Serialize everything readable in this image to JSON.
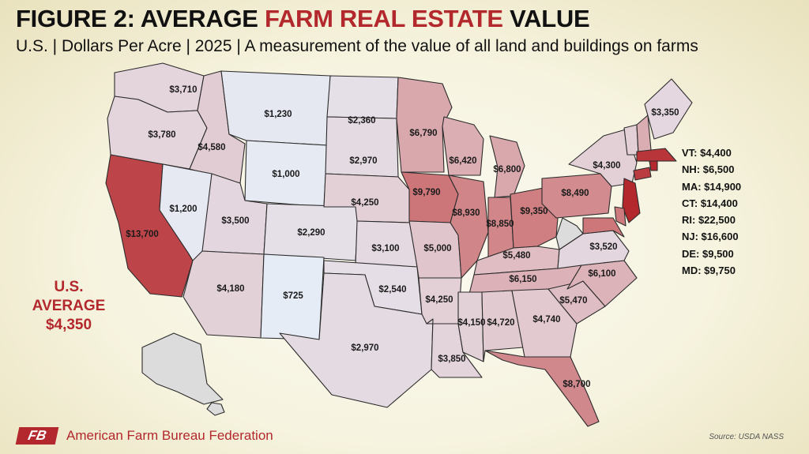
{
  "title": {
    "part1": "FIGURE 2: AVERAGE ",
    "part2": "FARM REAL ESTATE",
    "part3": " VALUE"
  },
  "subtitle": "U.S. | Dollars Per Acre | 2025 | A measurement of the value of all land and buildings on farms",
  "us_average": {
    "line1": "U.S.",
    "line2": "AVERAGE",
    "value": "$4,350"
  },
  "colors": {
    "low": "#e6ecf6",
    "mid": "#e3cfd6",
    "high": "#cc7376",
    "max": "#b3282d",
    "nodata": "#dcdcdc"
  },
  "states": [
    {
      "state": "WA",
      "label": "$3,710",
      "value": 3710
    },
    {
      "state": "OR",
      "label": "$3,780",
      "value": 3780
    },
    {
      "state": "CA",
      "label": "$13,700",
      "value": 13700
    },
    {
      "state": "ID",
      "label": "$4,580",
      "value": 4580
    },
    {
      "state": "NV",
      "label": "$1,200",
      "value": 1200
    },
    {
      "state": "MT",
      "label": "$1,230",
      "value": 1230
    },
    {
      "state": "WY",
      "label": "$1,000",
      "value": 1000
    },
    {
      "state": "UT",
      "label": "$3,500",
      "value": 3500
    },
    {
      "state": "CO",
      "label": "$2,290",
      "value": 2290
    },
    {
      "state": "AZ",
      "label": "$4,180",
      "value": 4180
    },
    {
      "state": "NM",
      "label": "$725",
      "value": 725
    },
    {
      "state": "ND",
      "label": "$2,360",
      "value": 2360
    },
    {
      "state": "SD",
      "label": "$2,970",
      "value": 2970
    },
    {
      "state": "NE",
      "label": "$4,250",
      "value": 4250
    },
    {
      "state": "KS",
      "label": "$3,100",
      "value": 3100
    },
    {
      "state": "OK",
      "label": "$2,540",
      "value": 2540
    },
    {
      "state": "TX",
      "label": "$2,970",
      "value": 2970
    },
    {
      "state": "MN",
      "label": "$6,790",
      "value": 6790
    },
    {
      "state": "IA",
      "label": "$9,790",
      "value": 9790
    },
    {
      "state": "MO",
      "label": "$5,000",
      "value": 5000
    },
    {
      "state": "AR",
      "label": "$4,250",
      "value": 4250
    },
    {
      "state": "LA",
      "label": "$3,850",
      "value": 3850
    },
    {
      "state": "WI",
      "label": "$6,420",
      "value": 6420
    },
    {
      "state": "IL",
      "label": "$8,930",
      "value": 8930
    },
    {
      "state": "MI",
      "label": "$6,800",
      "value": 6800
    },
    {
      "state": "IN",
      "label": "$8,850",
      "value": 8850
    },
    {
      "state": "OH",
      "label": "$9,350",
      "value": 9350
    },
    {
      "state": "KY",
      "label": "$5,480",
      "value": 5480
    },
    {
      "state": "TN",
      "label": "$6,150",
      "value": 6150
    },
    {
      "state": "MS",
      "label": "$4,150",
      "value": 4150
    },
    {
      "state": "AL",
      "label": "$4,720",
      "value": 4720
    },
    {
      "state": "GA",
      "label": "$4,740",
      "value": 4740
    },
    {
      "state": "FL",
      "label": "$8,700",
      "value": 8700
    },
    {
      "state": "SC",
      "label": "$5,470",
      "value": 5470
    },
    {
      "state": "NC",
      "label": "$6,100",
      "value": 6100
    },
    {
      "state": "VA",
      "label": "$3,520",
      "value": 3520
    },
    {
      "state": "WV",
      "label": "",
      "value": null
    },
    {
      "state": "PA",
      "label": "$8,490",
      "value": 8490
    },
    {
      "state": "NY",
      "label": "$4,300",
      "value": 4300
    },
    {
      "state": "ME",
      "label": "$3,350",
      "value": 3350
    },
    {
      "state": "VT",
      "label": "",
      "value": 4400
    },
    {
      "state": "NH",
      "label": "",
      "value": 6500
    },
    {
      "state": "MA",
      "label": "",
      "value": 14900
    },
    {
      "state": "CT",
      "label": "",
      "value": 14400
    },
    {
      "state": "RI",
      "label": "",
      "value": 22500
    },
    {
      "state": "NJ",
      "label": "",
      "value": 16600
    },
    {
      "state": "DE",
      "label": "",
      "value": 9500
    },
    {
      "state": "MD",
      "label": "",
      "value": 9750
    },
    {
      "state": "AK",
      "label": "",
      "value": null
    },
    {
      "state": "HI",
      "label": "",
      "value": null
    }
  ],
  "northeast_list": [
    "VT: $4,400",
    "NH: $6,500",
    "MA: $14,900",
    "CT: $14,400",
    "RI: $22,500",
    "NJ: $16,600",
    "DE: $9,500",
    "MD: $9,750"
  ],
  "footer": {
    "logo_text": "FB",
    "org_name": "American Farm Bureau Federation",
    "source": "Source: USDA NASS"
  }
}
